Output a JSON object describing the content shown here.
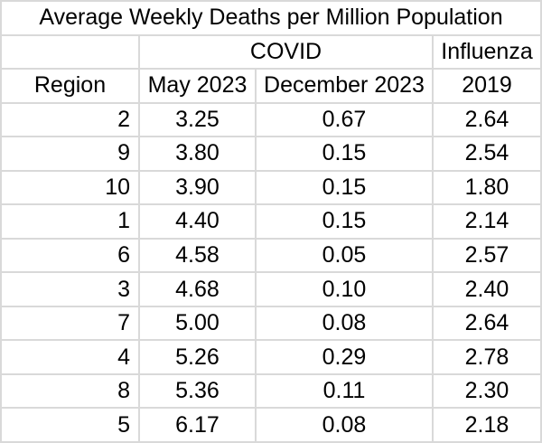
{
  "colors": {
    "gridline": "#d9d9d9",
    "cell_background": "#ffffff",
    "text": "#000000"
  },
  "chart_data": {
    "type": "table",
    "title": "Average Weekly Deaths per Million Population",
    "column_groups": [
      {
        "label": "",
        "span": 1
      },
      {
        "label": "COVID",
        "span": 2
      },
      {
        "label": "Influenza",
        "span": 1
      }
    ],
    "columns": [
      "Region",
      "May 2023",
      "December 2023",
      "2019"
    ],
    "rows": [
      [
        "2",
        "3.25",
        "0.67",
        "2.64"
      ],
      [
        "9",
        "3.80",
        "0.15",
        "2.54"
      ],
      [
        "10",
        "3.90",
        "0.15",
        "1.80"
      ],
      [
        "1",
        "4.40",
        "0.15",
        "2.14"
      ],
      [
        "6",
        "4.58",
        "0.05",
        "2.57"
      ],
      [
        "3",
        "4.68",
        "0.10",
        "2.40"
      ],
      [
        "7",
        "5.00",
        "0.08",
        "2.64"
      ],
      [
        "4",
        "5.26",
        "0.29",
        "2.78"
      ],
      [
        "8",
        "5.36",
        "0.11",
        "2.30"
      ],
      [
        "5",
        "6.17",
        "0.08",
        "2.18"
      ]
    ]
  }
}
